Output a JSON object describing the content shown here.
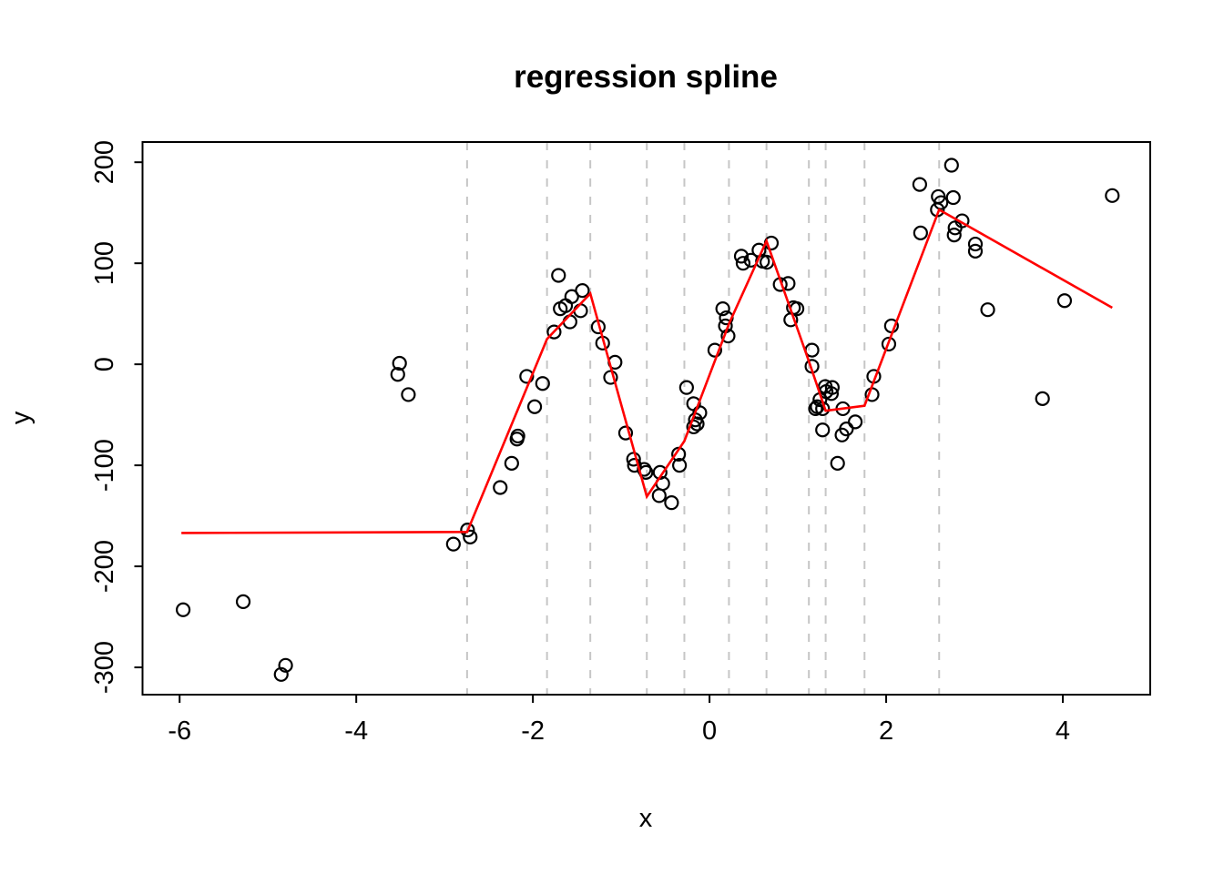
{
  "chart_data": {
    "type": "scatter",
    "title": "regression spline",
    "xlabel": "x",
    "ylabel": "y",
    "xlim": [
      -6.42,
      4.99
    ],
    "ylim": [
      -327,
      220
    ],
    "x_ticks": [
      -6,
      -4,
      -2,
      0,
      2,
      4
    ],
    "y_ticks": [
      -300,
      -200,
      -100,
      0,
      100,
      200
    ],
    "grid": "off",
    "legend": "none",
    "colors": {
      "spline_line": "#FF0000",
      "knot_line": "#C6C6C6",
      "point_stroke": "#000000",
      "axis": "#000000",
      "background": "#FFFFFF"
    },
    "knot_x": [
      -2.745,
      -1.84,
      -1.35,
      -0.71,
      -0.285,
      0.22,
      0.645,
      1.125,
      1.315,
      1.755,
      2.6
    ],
    "spline_vertices": [
      [
        -5.98,
        -167
      ],
      [
        -2.745,
        -166
      ],
      [
        -1.84,
        25
      ],
      [
        -1.35,
        70
      ],
      [
        -0.71,
        -131
      ],
      [
        -0.285,
        -76
      ],
      [
        0.22,
        40
      ],
      [
        0.645,
        122
      ],
      [
        1.125,
        3
      ],
      [
        1.315,
        -46
      ],
      [
        1.755,
        -41
      ],
      [
        2.6,
        153
      ],
      [
        4.56,
        56
      ]
    ],
    "points": [
      [
        -5.96,
        -243
      ],
      [
        -5.28,
        -235
      ],
      [
        -4.85,
        -307
      ],
      [
        -4.8,
        -298
      ],
      [
        -3.53,
        -10
      ],
      [
        -3.51,
        1
      ],
      [
        -3.41,
        -30
      ],
      [
        -2.9,
        -178
      ],
      [
        -2.74,
        -164
      ],
      [
        -2.71,
        -171
      ],
      [
        -2.37,
        -122
      ],
      [
        -2.24,
        -98
      ],
      [
        -2.18,
        -74
      ],
      [
        -2.17,
        -71
      ],
      [
        -2.07,
        -12
      ],
      [
        -1.98,
        -42
      ],
      [
        -1.89,
        -19
      ],
      [
        -1.76,
        32
      ],
      [
        -1.71,
        88
      ],
      [
        -1.69,
        55
      ],
      [
        -1.63,
        58
      ],
      [
        -1.58,
        42
      ],
      [
        -1.56,
        67
      ],
      [
        -1.46,
        53
      ],
      [
        -1.44,
        73
      ],
      [
        -1.26,
        37
      ],
      [
        -1.21,
        21
      ],
      [
        -1.12,
        -13
      ],
      [
        -1.07,
        2
      ],
      [
        -0.95,
        -68
      ],
      [
        -0.86,
        -94
      ],
      [
        -0.85,
        -100
      ],
      [
        -0.74,
        -104
      ],
      [
        -0.72,
        -107
      ],
      [
        -0.57,
        -130
      ],
      [
        -0.56,
        -107
      ],
      [
        -0.53,
        -118
      ],
      [
        -0.43,
        -137
      ],
      [
        -0.35,
        -89
      ],
      [
        -0.34,
        -100
      ],
      [
        -0.26,
        -23
      ],
      [
        -0.18,
        -39
      ],
      [
        -0.18,
        -62
      ],
      [
        -0.16,
        -55
      ],
      [
        -0.14,
        -59
      ],
      [
        -0.11,
        -48
      ],
      [
        0.06,
        14
      ],
      [
        0.15,
        55
      ],
      [
        0.18,
        38
      ],
      [
        0.19,
        46
      ],
      [
        0.21,
        28
      ],
      [
        0.36,
        107
      ],
      [
        0.38,
        100
      ],
      [
        0.47,
        103
      ],
      [
        0.56,
        113
      ],
      [
        0.6,
        102
      ],
      [
        0.65,
        101
      ],
      [
        0.7,
        120
      ],
      [
        0.8,
        79
      ],
      [
        0.89,
        80
      ],
      [
        0.92,
        44
      ],
      [
        0.95,
        56
      ],
      [
        0.99,
        55
      ],
      [
        1.16,
        14
      ],
      [
        1.16,
        -2
      ],
      [
        1.2,
        -44
      ],
      [
        1.22,
        -42
      ],
      [
        1.25,
        -35
      ],
      [
        1.28,
        -44
      ],
      [
        1.31,
        -22
      ],
      [
        1.32,
        -27
      ],
      [
        1.38,
        -29
      ],
      [
        1.39,
        -23
      ],
      [
        1.28,
        -65
      ],
      [
        1.45,
        -98
      ],
      [
        1.5,
        -70
      ],
      [
        1.51,
        -44
      ],
      [
        1.55,
        -64
      ],
      [
        1.65,
        -57
      ],
      [
        1.84,
        -30
      ],
      [
        1.86,
        -12
      ],
      [
        2.03,
        20
      ],
      [
        2.06,
        38
      ],
      [
        2.38,
        178
      ],
      [
        2.39,
        130
      ],
      [
        2.58,
        153
      ],
      [
        2.59,
        166
      ],
      [
        2.62,
        160
      ],
      [
        2.74,
        197
      ],
      [
        2.76,
        165
      ],
      [
        2.77,
        128
      ],
      [
        2.78,
        135
      ],
      [
        2.86,
        142
      ],
      [
        3.01,
        119
      ],
      [
        3.01,
        112
      ],
      [
        3.15,
        54
      ],
      [
        3.77,
        -34
      ],
      [
        4.02,
        63
      ],
      [
        4.56,
        167
      ]
    ]
  }
}
